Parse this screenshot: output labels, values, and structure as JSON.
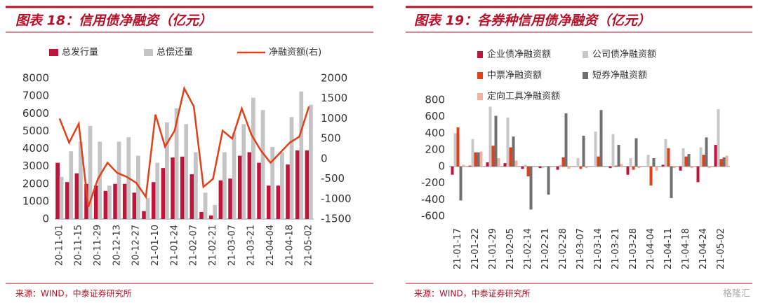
{
  "chart_data": [
    {
      "type": "combo",
      "title": "图表 18：信用债净融资（亿元）",
      "source": "来源：WIND，中泰证券研究所",
      "categories": [
        "20-11-01",
        null,
        "20-11-15",
        null,
        "20-11-29",
        null,
        "20-12-13",
        null,
        "20-12-27",
        null,
        "21-01-10",
        null,
        "21-01-24",
        null,
        "21-02-07",
        null,
        "21-02-21",
        null,
        "21-03-07",
        null,
        "21-03-21",
        null,
        "21-04-04",
        null,
        "21-04-18",
        null,
        "21-05-02"
      ],
      "series": [
        {
          "name": "总发行量",
          "type": "bar",
          "color": "#c0143c",
          "values": [
            3200,
            2100,
            2600,
            2000,
            1900,
            1600,
            2000,
            2000,
            1500,
            450,
            2100,
            2900,
            3500,
            3550,
            2550,
            400,
            200,
            2200,
            2300,
            3600,
            3800,
            3200,
            1900,
            1900,
            3100,
            3900,
            3900
          ]
        },
        {
          "name": "总偿还量",
          "type": "bar",
          "color": "#c4c4c4",
          "values": [
            2400,
            3850,
            4400,
            5300,
            4400,
            1900,
            4400,
            4650,
            3600,
            1200,
            3200,
            5500,
            6300,
            5400,
            3800,
            1500,
            800,
            3800,
            4900,
            5400,
            6900,
            6200,
            4100,
            3800,
            5800,
            7250,
            6500
          ]
        },
        {
          "name": "净融资额(右)",
          "type": "line",
          "axis": "y2",
          "color": "#e0401a",
          "values": [
            1000,
            400,
            870,
            -1200,
            -500,
            -100,
            -350,
            -450,
            -600,
            -950,
            1100,
            300,
            700,
            1750,
            1300,
            -700,
            -500,
            700,
            500,
            1250,
            600,
            200,
            -100,
            150,
            400,
            550,
            1300
          ]
        }
      ],
      "ylim": [
        0,
        8000
      ],
      "yticks": [
        0,
        1000,
        2000,
        3000,
        4000,
        5000,
        6000,
        7000,
        8000
      ],
      "y2lim": [
        -1500,
        2000
      ],
      "y2ticks": [
        -1500,
        -1000,
        -500,
        0,
        500,
        1000,
        1500,
        2000
      ]
    },
    {
      "type": "bar",
      "title": "图表 19：各券种信用债净融资（亿元）",
      "source": "来源：WIND，中泰证券研究所",
      "watermark": "格隆汇",
      "categories": [
        "21-01-17",
        "21-01-22",
        "21-01-29",
        "21-02-05",
        "21-02-14",
        "21-02-21",
        "21-02-28",
        "21-03-07",
        "21-03-14",
        "21-03-21",
        "21-03-28",
        "21-04-04",
        "21-04-11",
        "21-04-18",
        "21-04-24",
        "21-05-02"
      ],
      "series": [
        {
          "name": "企业债净融资额",
          "color": "#c0143c",
          "values": [
            -100,
            10,
            50,
            40,
            -30,
            -20,
            -40,
            0,
            0,
            -20,
            -100,
            0,
            20,
            -50,
            -190,
            260
          ]
        },
        {
          "name": "公司债净融资额",
          "color": "#c8c8c8",
          "values": [
            400,
            330,
            720,
            590,
            20,
            -20,
            20,
            100,
            420,
            390,
            100,
            140,
            330,
            220,
            230,
            690
          ]
        },
        {
          "name": "中票净融资额",
          "color": "#e0401a",
          "values": [
            470,
            170,
            250,
            230,
            -120,
            0,
            110,
            -30,
            120,
            10,
            -40,
            -230,
            220,
            120,
            140,
            90
          ]
        },
        {
          "name": "短券净融资额",
          "color": "#707070",
          "values": [
            -410,
            170,
            610,
            360,
            -520,
            -340,
            640,
            370,
            680,
            260,
            340,
            100,
            -380,
            150,
            350,
            110
          ]
        },
        {
          "name": "定向工具净融资额",
          "color": "#f4b0a0",
          "values": [
            20,
            180,
            100,
            70,
            -10,
            -10,
            -30,
            -20,
            0,
            30,
            -20,
            -50,
            -20,
            -20,
            -20,
            130
          ]
        }
      ],
      "ylim": [
        -600,
        800
      ],
      "yticks": [
        -600,
        -400,
        -200,
        0,
        200,
        400,
        600,
        800
      ]
    }
  ]
}
